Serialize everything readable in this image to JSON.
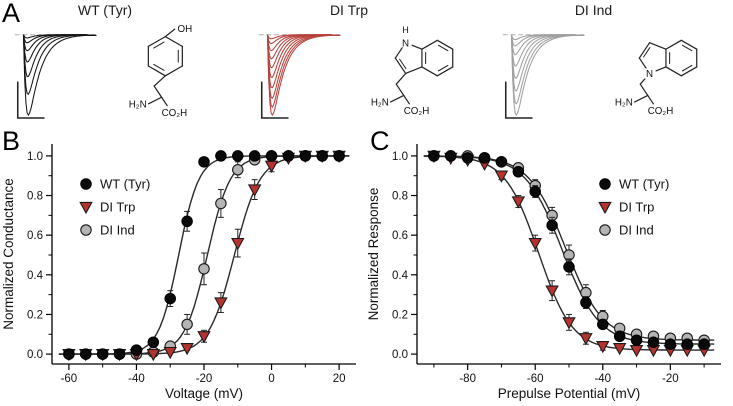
{
  "figure_bg": "#ffffff",
  "panelA": {
    "label": "A",
    "groups": [
      {
        "title": "WT (Tyr)",
        "trace_color": "#141414",
        "structure": "tyrosine",
        "trace_amplitudes": [
          1,
          0.74,
          0.52,
          0.34,
          0.2,
          0.1,
          0.04
        ],
        "structure_labels": {
          "oh": "OH",
          "h2n": "H₂N",
          "co2h": "CO₂H"
        }
      },
      {
        "title": "DI Trp",
        "trace_color": "#b8423c",
        "structure": "tryptophan",
        "trace_amplitudes": [
          1,
          0.9,
          0.79,
          0.66,
          0.53,
          0.41,
          0.3,
          0.2,
          0.11,
          0.05
        ],
        "structure_labels": {
          "n": "N",
          "h": "H",
          "h2n": "H₂N",
          "co2h": "CO₂H"
        }
      },
      {
        "title": "DI Ind",
        "trace_color": "#a0a0a0",
        "structure": "indole",
        "trace_amplitudes": [
          1,
          0.86,
          0.7,
          0.54,
          0.39,
          0.25,
          0.14,
          0.06
        ],
        "structure_labels": {
          "n": "N",
          "h2n": "H₂N",
          "co2h": "CO₂H"
        }
      }
    ]
  },
  "panelB": {
    "label": "B"
  },
  "panelC": {
    "label": "C"
  },
  "chart_data": [
    {
      "id": "activation",
      "type": "scatter",
      "xlabel": "Voltage (mV)",
      "ylabel": "Normalized Conductance",
      "xlim": [
        -65,
        25
      ],
      "ylim": [
        -0.05,
        1.06
      ],
      "xticks": [
        -60,
        -40,
        -20,
        0,
        20
      ],
      "xminor": 10,
      "yticks": [
        0,
        0.2,
        0.4,
        0.6,
        0.8,
        1.0
      ],
      "legend_pos": "left",
      "grid": false,
      "x": [
        -60,
        -55,
        -50,
        -45,
        -40,
        -35,
        -30,
        -25,
        -20,
        -15,
        -10,
        -5,
        0,
        5,
        10,
        15,
        20
      ],
      "series": [
        {
          "name": "WT (Tyr)",
          "marker": "circle",
          "fill": "#0a0a0a",
          "edge": "#000000",
          "y": [
            0,
            0,
            0,
            0,
            0.02,
            0.06,
            0.28,
            0.67,
            0.97,
            1,
            1,
            1,
            1,
            1,
            1,
            1,
            1
          ],
          "err": [
            0,
            0,
            0,
            0,
            0.01,
            0.02,
            0.04,
            0.05,
            0.02,
            0.01,
            0,
            0,
            0,
            0,
            0,
            0,
            0
          ],
          "fit": {
            "v50": -27.5,
            "k": 3.0,
            "min": 0,
            "max": 1
          }
        },
        {
          "name": "DI Trp",
          "marker": "triangle-down",
          "fill": "#b5332e",
          "edge": "#1a1a1a",
          "y": [
            0,
            0,
            0,
            0,
            0,
            0,
            0.01,
            0.03,
            0.09,
            0.26,
            0.56,
            0.83,
            0.95,
            0.99,
            1,
            1,
            1
          ],
          "err": [
            0,
            0,
            0,
            0,
            0,
            0,
            0,
            0.01,
            0.03,
            0.05,
            0.07,
            0.05,
            0.03,
            0.01,
            0,
            0,
            0
          ],
          "fit": {
            "v50": -11,
            "k": 3.8,
            "min": 0,
            "max": 1
          }
        },
        {
          "name": "DI Ind",
          "marker": "circle",
          "fill": "#b4b4b4",
          "edge": "#1a1a1a",
          "y": [
            0,
            0,
            0,
            0,
            0,
            0.01,
            0.04,
            0.15,
            0.43,
            0.76,
            0.93,
            0.98,
            1,
            1,
            1,
            1,
            1
          ],
          "err": [
            0,
            0,
            0,
            0,
            0,
            0,
            0.02,
            0.05,
            0.08,
            0.07,
            0.04,
            0.02,
            0.01,
            0,
            0,
            0,
            0
          ],
          "fit": {
            "v50": -19,
            "k": 3.4,
            "min": 0,
            "max": 1
          }
        }
      ]
    },
    {
      "id": "inactivation",
      "type": "scatter",
      "xlabel": "Prepulse Potential (mV)",
      "ylabel": "Normalized Response",
      "xlim": [
        -95,
        -5
      ],
      "ylim": [
        -0.05,
        1.06
      ],
      "xticks": [
        -80,
        -60,
        -40,
        -20
      ],
      "xminor": 10,
      "yticks": [
        0,
        0.2,
        0.4,
        0.6,
        0.8,
        1.0
      ],
      "legend_pos": "right",
      "grid": false,
      "x": [
        -90,
        -85,
        -80,
        -75,
        -70,
        -65,
        -60,
        -55,
        -50,
        -45,
        -40,
        -35,
        -30,
        -25,
        -20,
        -15,
        -10
      ],
      "series": [
        {
          "name": "WT (Tyr)",
          "marker": "circle",
          "fill": "#0a0a0a",
          "edge": "#000000",
          "y": [
            1,
            1,
            0.99,
            0.99,
            0.97,
            0.92,
            0.82,
            0.65,
            0.44,
            0.26,
            0.15,
            0.09,
            0.07,
            0.06,
            0.05,
            0.05,
            0.05
          ],
          "err": [
            0,
            0,
            0,
            0,
            0.01,
            0.02,
            0.03,
            0.04,
            0.04,
            0.03,
            0.02,
            0.01,
            0.01,
            0,
            0,
            0,
            0
          ],
          "fit": {
            "v50": -52,
            "k": -5.5,
            "min": 0.05,
            "max": 1
          }
        },
        {
          "name": "DI Trp",
          "marker": "triangle-down",
          "fill": "#b5332e",
          "edge": "#1a1a1a",
          "y": [
            1,
            0.99,
            0.98,
            0.96,
            0.9,
            0.77,
            0.56,
            0.32,
            0.16,
            0.08,
            0.04,
            0.03,
            0.02,
            0.02,
            0.02,
            0.02,
            0.02
          ],
          "err": [
            0,
            0,
            0,
            0.01,
            0.02,
            0.03,
            0.04,
            0.05,
            0.04,
            0.03,
            0.02,
            0.01,
            0,
            0,
            0,
            0,
            0
          ],
          "fit": {
            "v50": -59,
            "k": -5.0,
            "min": 0.02,
            "max": 1
          }
        },
        {
          "name": "DI Ind",
          "marker": "circle",
          "fill": "#b4b4b4",
          "edge": "#1a1a1a",
          "y": [
            1,
            1,
            1,
            0.99,
            0.97,
            0.94,
            0.85,
            0.7,
            0.5,
            0.31,
            0.19,
            0.13,
            0.1,
            0.09,
            0.08,
            0.08,
            0.07
          ],
          "err": [
            0,
            0,
            0,
            0,
            0.01,
            0.02,
            0.03,
            0.04,
            0.05,
            0.04,
            0.03,
            0.02,
            0.01,
            0.01,
            0,
            0,
            0
          ],
          "fit": {
            "v50": -51,
            "k": -5.5,
            "min": 0.07,
            "max": 1
          }
        }
      ]
    }
  ]
}
